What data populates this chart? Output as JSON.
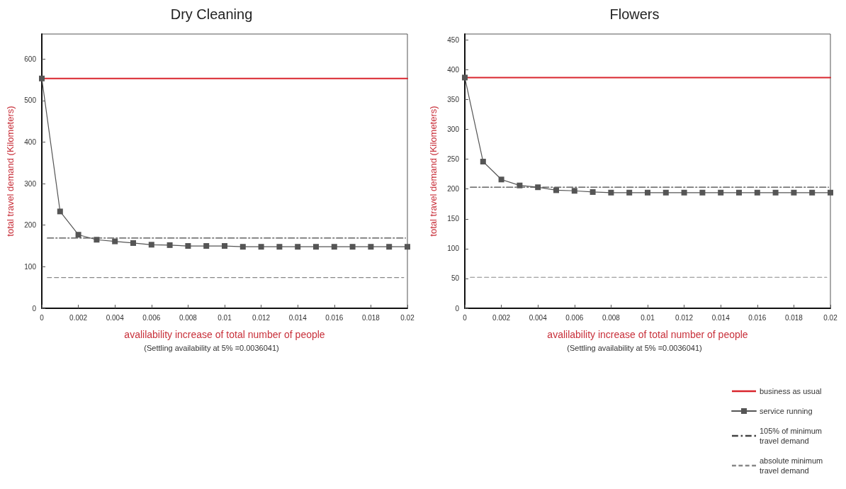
{
  "chart_data": [
    {
      "type": "line",
      "title": "Dry Cleaning",
      "xlabel": "avalilability increase of total number of people",
      "ylabel": "total travel demand (Kilometers)",
      "annotations": [
        "(Settling availability at 5% =0.0036041)"
      ],
      "x": [
        0,
        0.001,
        0.002,
        0.003,
        0.004,
        0.005,
        0.006,
        0.007,
        0.008,
        0.009,
        0.01,
        0.011,
        0.012,
        0.013,
        0.014,
        0.015,
        0.016,
        0.017,
        0.018,
        0.019,
        0.02
      ],
      "series": [
        {
          "color": "#d9262e",
          "x": [
            0,
            0.02
          ],
          "values": [
            553,
            553
          ],
          "marker": "none",
          "line_style": "solid"
        },
        {
          "color": "#555555",
          "values": [
            553,
            233,
            177,
            165,
            161,
            157,
            153,
            152,
            150,
            150,
            150,
            148,
            148,
            148,
            148,
            148,
            148,
            148,
            148,
            148,
            148
          ],
          "marker": "square",
          "line_style": "solid"
        },
        {
          "color": "#444444",
          "x": [
            0.0003,
            0.0199
          ],
          "values": [
            169,
            169
          ],
          "marker": "none",
          "line_style": "dashdot"
        },
        {
          "color": "#888888",
          "x": [
            0.0003,
            0.0198
          ],
          "values": [
            74,
            74
          ],
          "marker": "none",
          "line_style": "dashed"
        }
      ],
      "xlim": [
        0,
        0.02
      ],
      "xticks": [
        0,
        0.002,
        0.004,
        0.006,
        0.008,
        0.01,
        0.012,
        0.014,
        0.016,
        0.018,
        0.02
      ],
      "ylim": [
        0,
        660
      ],
      "yticks": [
        0,
        100,
        200,
        300,
        400,
        500,
        600
      ],
      "grid": false,
      "legend": false
    },
    {
      "type": "line",
      "title": "Flowers",
      "xlabel": "avalilability increase of total number of people",
      "ylabel": "total travel demand (Kilometers)",
      "annotations": [
        "(Settling availability at 5% =0.0036041)"
      ],
      "x": [
        0,
        0.001,
        0.002,
        0.003,
        0.004,
        0.005,
        0.006,
        0.007,
        0.008,
        0.009,
        0.01,
        0.011,
        0.012,
        0.013,
        0.014,
        0.015,
        0.016,
        0.017,
        0.018,
        0.019,
        0.02
      ],
      "series": [
        {
          "name": "business as usual",
          "color": "#d9262e",
          "x": [
            0,
            0.02
          ],
          "values": [
            387,
            387
          ],
          "marker": "none",
          "line_style": "solid"
        },
        {
          "name": "service running",
          "color": "#555555",
          "values": [
            387,
            246,
            216,
            206,
            203,
            198,
            197,
            195,
            194,
            194,
            194,
            194,
            194,
            194,
            194,
            194,
            194,
            194,
            194,
            194,
            194
          ],
          "marker": "square",
          "line_style": "solid"
        },
        {
          "name": "105% of minimum travel demand",
          "color": "#444444",
          "x": [
            0.0003,
            0.0199
          ],
          "values": [
            203,
            203
          ],
          "marker": "none",
          "line_style": "dashdot"
        },
        {
          "name": "absolute minimum travel demand",
          "color": "#888888",
          "x": [
            0.0003,
            0.0198
          ],
          "values": [
            52,
            52
          ],
          "marker": "none",
          "line_style": "dashed"
        }
      ],
      "xlim": [
        0,
        0.02
      ],
      "xticks": [
        0,
        0.002,
        0.004,
        0.006,
        0.008,
        0.01,
        0.012,
        0.014,
        0.016,
        0.018,
        0.02
      ],
      "ylim": [
        0,
        460
      ],
      "yticks": [
        0,
        50,
        100,
        150,
        200,
        250,
        300,
        350,
        400,
        450
      ],
      "grid": false,
      "legend": "bottom right"
    }
  ]
}
